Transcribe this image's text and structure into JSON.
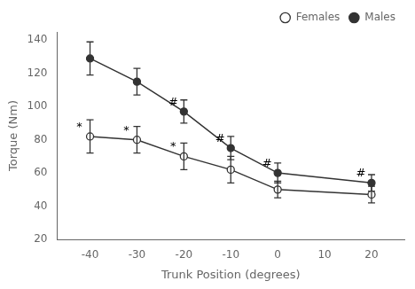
{
  "chart_data": {
    "type": "line",
    "x": [
      -40,
      -30,
      -20,
      -10,
      0,
      20
    ],
    "series": [
      {
        "name": "Females",
        "color": "#333333",
        "marker": "open_circle",
        "line_style": "solid",
        "values": [
          82,
          80,
          70,
          62,
          50,
          47
        ],
        "errors": [
          10,
          8,
          8,
          8,
          5,
          5
        ],
        "annotations": [
          "*",
          "*",
          "*",
          null,
          null,
          null
        ]
      },
      {
        "name": "Males",
        "color": "#333333",
        "marker": "filled_circle",
        "line_style": "solid",
        "values": [
          129,
          115,
          97,
          75,
          60,
          54
        ],
        "errors": [
          10,
          8,
          7,
          7,
          6,
          5
        ],
        "annotations": [
          null,
          null,
          "#",
          "#",
          "#",
          "#"
        ]
      }
    ],
    "xlabel": "Trunk Position (degrees)",
    "ylabel": "Torque (Nm)",
    "xlim": [
      -47,
      27
    ],
    "ylim": [
      20,
      145
    ],
    "xticks": [
      -40,
      -30,
      -20,
      -10,
      0,
      10,
      20
    ],
    "yticks": [
      20,
      40,
      60,
      80,
      100,
      120,
      140
    ],
    "grid": false,
    "legend": "upper right"
  }
}
